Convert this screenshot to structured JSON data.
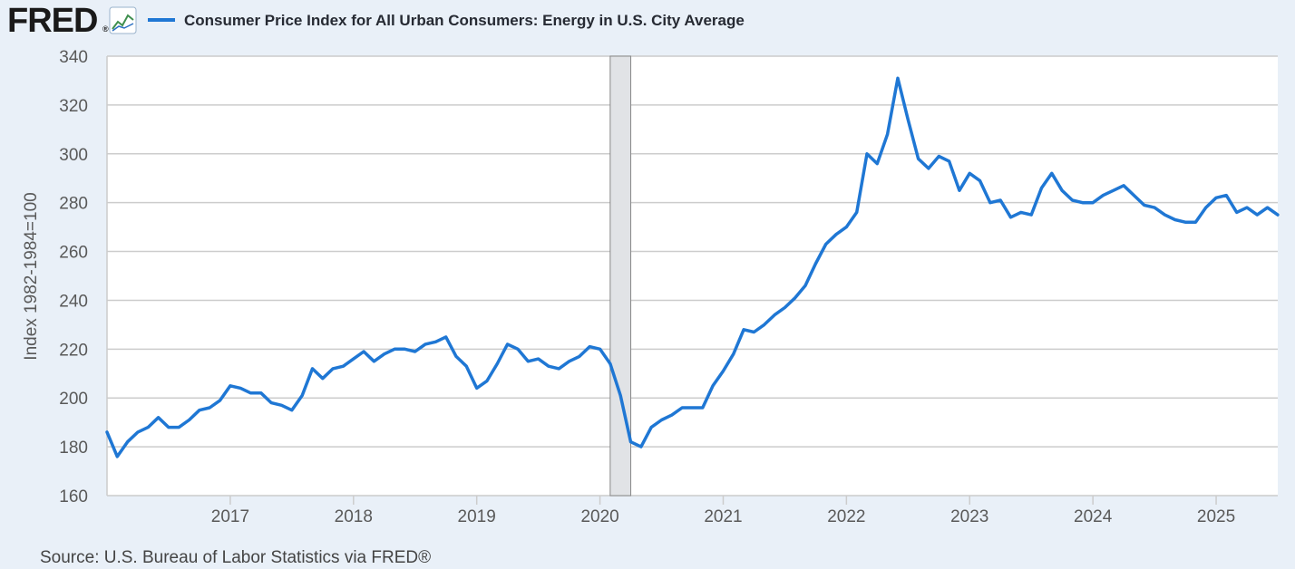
{
  "header": {
    "logo_text": "FRED",
    "logo_registered": "®",
    "logo_icon": "trend-chart-icon"
  },
  "footer": {
    "source": "Source: U.S. Bureau of Labor Statistics via FRED®"
  },
  "colors": {
    "background": "#e9f0f8",
    "plot_background": "#ffffff",
    "line": "#1f77d4",
    "grid": "#cccccc",
    "recession_fill": "#e1e3e6",
    "recession_border": "#888888",
    "logo": "#1a1a1a"
  },
  "chart_data": {
    "type": "line",
    "title": "Consumer Price Index for All Urban Consumers: Energy in U.S. City Average",
    "xlabel": "",
    "ylabel": "Index 1982-1984=100",
    "ylim": [
      160,
      340
    ],
    "y_ticks": [
      160,
      180,
      200,
      220,
      240,
      260,
      280,
      300,
      320,
      340
    ],
    "xlim": [
      2016.0,
      2025.5
    ],
    "x_ticks": [
      {
        "label": "2017",
        "value": 2017
      },
      {
        "label": "2018",
        "value": 2018
      },
      {
        "label": "2019",
        "value": 2019
      },
      {
        "label": "2020",
        "value": 2020
      },
      {
        "label": "2021",
        "value": 2021
      },
      {
        "label": "2022",
        "value": 2022
      },
      {
        "label": "2023",
        "value": 2023
      },
      {
        "label": "2024",
        "value": 2024
      },
      {
        "label": "2025",
        "value": 2025
      }
    ],
    "grid": true,
    "recession": {
      "start": 2020.083,
      "end": 2020.25
    },
    "series": [
      {
        "name": "Consumer Price Index for All Urban Consumers: Energy in U.S. City Average",
        "start": 2016.0,
        "step": 0.08333,
        "values": [
          186,
          176,
          182,
          186,
          188,
          192,
          188,
          188,
          191,
          195,
          196,
          199,
          205,
          204,
          202,
          202,
          198,
          197,
          195,
          201,
          212,
          208,
          212,
          213,
          216,
          219,
          215,
          218,
          220,
          220,
          219,
          222,
          223,
          225,
          217,
          213,
          204,
          207,
          214,
          222,
          220,
          215,
          216,
          213,
          212,
          215,
          217,
          221,
          220,
          214,
          201,
          182,
          180,
          188,
          191,
          193,
          196,
          196,
          196,
          205,
          211,
          218,
          228,
          227,
          230,
          234,
          237,
          241,
          246,
          255,
          263,
          267,
          270,
          276,
          300,
          296,
          308,
          331,
          314,
          298,
          294,
          299,
          297,
          285,
          292,
          289,
          280,
          281,
          274,
          276,
          275,
          286,
          292,
          285,
          281,
          280,
          280,
          283,
          285,
          287,
          283,
          279,
          278,
          275,
          273,
          272,
          272,
          278,
          282,
          283,
          276,
          278,
          275,
          278,
          275
        ]
      }
    ]
  }
}
